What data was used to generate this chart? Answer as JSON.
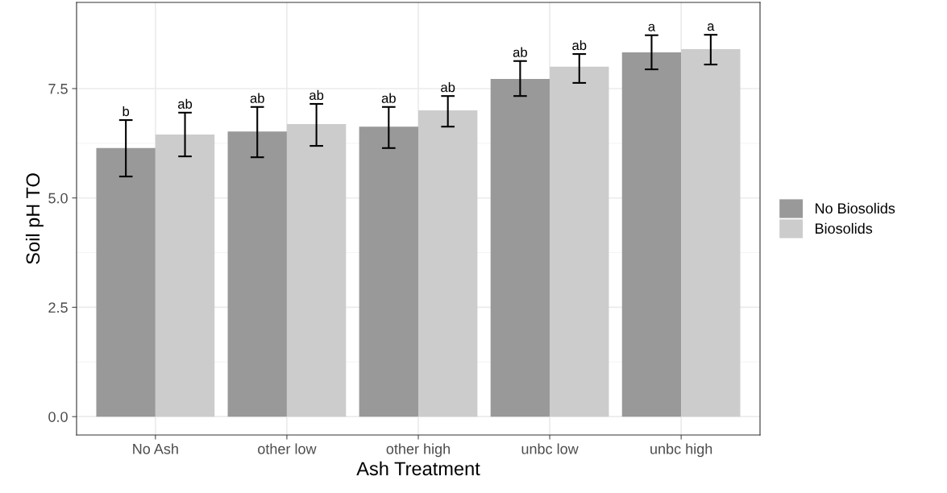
{
  "chart_data": {
    "type": "bar",
    "xlabel": "Ash Treatment",
    "ylabel": "Soil pH TO",
    "categories": [
      "No Ash",
      "other low",
      "other high",
      "unbc low",
      "unbc high"
    ],
    "series": [
      {
        "name": "No Biosolids",
        "color": "#999999",
        "values": [
          6.14,
          6.52,
          6.63,
          7.72,
          8.33
        ],
        "errors": [
          [
            5.49,
            6.78
          ],
          [
            5.93,
            7.08
          ],
          [
            6.14,
            7.08
          ],
          [
            7.33,
            8.13
          ],
          [
            7.94,
            8.72
          ]
        ],
        "value_labels": [
          "b",
          "ab",
          "ab",
          "ab",
          "a"
        ]
      },
      {
        "name": "Biosolids",
        "color": "#cccccc",
        "values": [
          6.45,
          6.69,
          7.0,
          8.0,
          8.4
        ],
        "errors": [
          [
            5.95,
            6.95
          ],
          [
            6.19,
            7.15
          ],
          [
            6.63,
            7.33
          ],
          [
            7.63,
            8.29
          ],
          [
            8.05,
            8.73
          ]
        ],
        "value_labels": [
          "ab",
          "ab",
          "ab",
          "ab",
          "a"
        ]
      }
    ],
    "ylim": [
      -0.42,
      9.47
    ],
    "yticks": [
      {
        "value": 0,
        "label": "0.0"
      },
      {
        "value": 2.5,
        "label": "2.5"
      },
      {
        "value": 5,
        "label": "5.0"
      },
      {
        "value": 7.5,
        "label": "7.5"
      }
    ],
    "grid": true,
    "legend": "right"
  }
}
